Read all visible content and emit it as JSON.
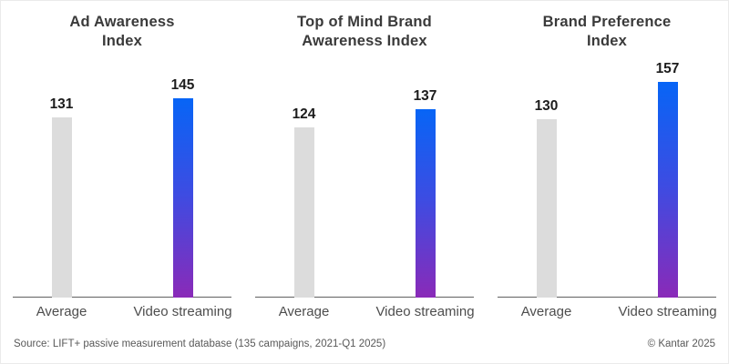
{
  "colors": {
    "bar_average": "#dcdcdc",
    "bar_video_top": "#0765f6",
    "bar_video_bottom": "#8a2ab8",
    "axis_line": "#606060",
    "title_text": "#3a3a3a",
    "value_text": "#1c1c1c",
    "category_text": "#4d4d4d",
    "footer_text": "#595959"
  },
  "chart_data": [
    {
      "type": "bar",
      "id": "ad-awareness-index",
      "title": "Ad Awareness Index",
      "title_lines": [
        "Ad Awareness",
        "Index"
      ],
      "categories": [
        "Average",
        "Video streaming"
      ],
      "values": [
        131,
        145
      ],
      "y_baseline": 0,
      "value_labels_shown": true,
      "legend": "none",
      "grid": "off"
    },
    {
      "type": "bar",
      "id": "top-of-mind-brand-awareness-index",
      "title": "Top of Mind Brand Awareness Index",
      "title_lines": [
        "Top of Mind Brand",
        "Awareness Index"
      ],
      "categories": [
        "Average",
        "Video streaming"
      ],
      "values": [
        124,
        137
      ],
      "y_baseline": 0,
      "value_labels_shown": true,
      "legend": "none",
      "grid": "off"
    },
    {
      "type": "bar",
      "id": "brand-preference-index",
      "title": "Brand Preference Index",
      "title_lines": [
        "Brand Preference",
        "Index"
      ],
      "categories": [
        "Average",
        "Video streaming"
      ],
      "values": [
        130,
        157
      ],
      "y_baseline": 0,
      "value_labels_shown": true,
      "legend": "none",
      "grid": "off"
    }
  ],
  "footer": {
    "source": "Source: LIFT+ passive measurement database (135 campaigns, 2021-Q1 2025)",
    "copyright": "© Kantar 2025"
  }
}
